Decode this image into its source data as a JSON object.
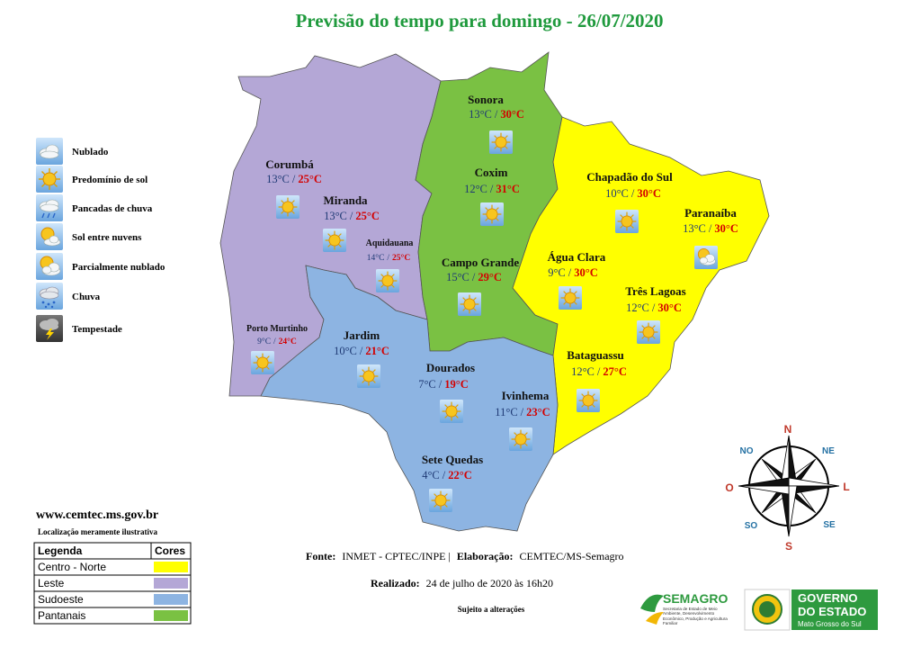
{
  "title": "Previsão do tempo para domingo - 26/07/2020",
  "weather_legend": [
    "Nublado",
    "Predomínio de sol",
    "Pancadas de chuva",
    "Sol entre nuvens",
    "Parcialmente nublado",
    "Chuva",
    "Tempestade"
  ],
  "temperature_separator": "/",
  "cities": [
    {
      "name": "Sonora",
      "min": "13°C",
      "max": "30°C"
    },
    {
      "name": "Coxim",
      "min": "12°C",
      "max": "31°C"
    },
    {
      "name": "Corumbá",
      "min": "13°C",
      "max": "25°C"
    },
    {
      "name": "Miranda",
      "min": "13°C",
      "max": "25°C"
    },
    {
      "name": "Aquidauana",
      "min": "14°C",
      "max": "25°C"
    },
    {
      "name": "Campo Grande",
      "min": "15°C",
      "max": "29°C"
    },
    {
      "name": "Chapadão do Sul",
      "min": "10°C",
      "max": "30°C"
    },
    {
      "name": "Paranaíba",
      "min": "13°C",
      "max": "30°C"
    },
    {
      "name": "Água Clara",
      "min": "9°C",
      "max": "30°C"
    },
    {
      "name": "Três Lagoas",
      "min": "12°C",
      "max": "30°C"
    },
    {
      "name": "Porto Murtinho",
      "min": "9°C",
      "max": "24°C"
    },
    {
      "name": "Jardim",
      "min": "10°C",
      "max": "21°C"
    },
    {
      "name": "Dourados",
      "min": "7°C",
      "max": "19°C"
    },
    {
      "name": "Ivinhema",
      "min": "11°C",
      "max": "23°C"
    },
    {
      "name": "Bataguassu",
      "min": "12°C",
      "max": "27°C"
    },
    {
      "name": "Sete Quedas",
      "min": "4°C",
      "max": "22°C"
    }
  ],
  "website": "www.cemtec.ms.gov.br",
  "location_note": "Localização meramente ilustrativa",
  "region_legend": {
    "header": [
      "Legenda",
      "Cores"
    ],
    "rows": [
      {
        "label": "Centro - Norte",
        "color": "#ffff00"
      },
      {
        "label": "Leste",
        "color": "#b4a7d6"
      },
      {
        "label": "Sudoeste",
        "color": "#8db4e2"
      },
      {
        "label": "Pantanais",
        "color": "#7ac143"
      }
    ]
  },
  "source": {
    "label": "Fonte:",
    "text": "INMET - CPTEC/INPE |",
    "credit_label": "Elaboração:",
    "credit": "CEMTEC/MS-Semagro"
  },
  "made": {
    "label": "Realizado:",
    "text": "24 de julho de 2020 às 16h20"
  },
  "disclaimer": "Sujeito a alterações",
  "compass": [
    "N",
    "NE",
    "L",
    "SE",
    "S",
    "SO",
    "O",
    "NO"
  ],
  "logos": {
    "semagro": "SEMAGRO",
    "semagro_sub": "Secretaria de Estado de Meio Ambiente, Desenvolvimento Econômico, Produção e Agricultura Familiar",
    "gov_line1": "GOVERNO",
    "gov_line2": "DO ESTADO",
    "gov_line3": "Mato Grosso do Sul"
  }
}
